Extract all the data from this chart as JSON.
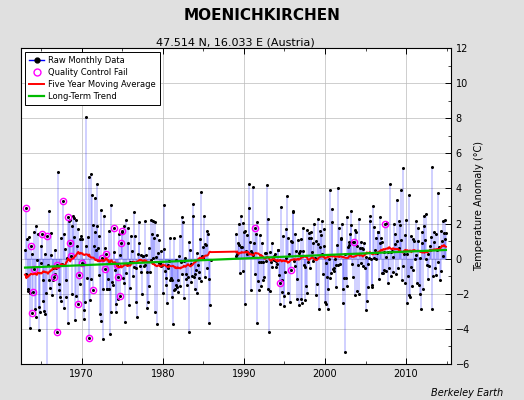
{
  "title": "MOENICHKIRCHEN",
  "subtitle": "47.514 N, 16.033 E (Austria)",
  "ylabel": "Temperature Anomaly (°C)",
  "credit": "Berkeley Earth",
  "xlim": [
    1962.5,
    2015.5
  ],
  "ylim": [
    -6,
    12
  ],
  "yticks": [
    -6,
    -4,
    -2,
    0,
    2,
    4,
    6,
    8,
    10,
    12
  ],
  "xticks": [
    1970,
    1980,
    1990,
    2000,
    2010
  ],
  "bg_color": "#e0e0e0",
  "plot_bg_color": "#ffffff",
  "line_color": "#0000ff",
  "dot_color": "#000000",
  "ma_color": "#ff0000",
  "trend_color": "#00bb00",
  "qc_color": "#ff00ff",
  "seed": 42,
  "start_year": 1963,
  "end_year": 2014,
  "gap_start": 1985,
  "gap_end": 1989,
  "title_fontsize": 11,
  "subtitle_fontsize": 8,
  "tick_fontsize": 7,
  "legend_fontsize": 6,
  "ylabel_fontsize": 7,
  "credit_fontsize": 7
}
